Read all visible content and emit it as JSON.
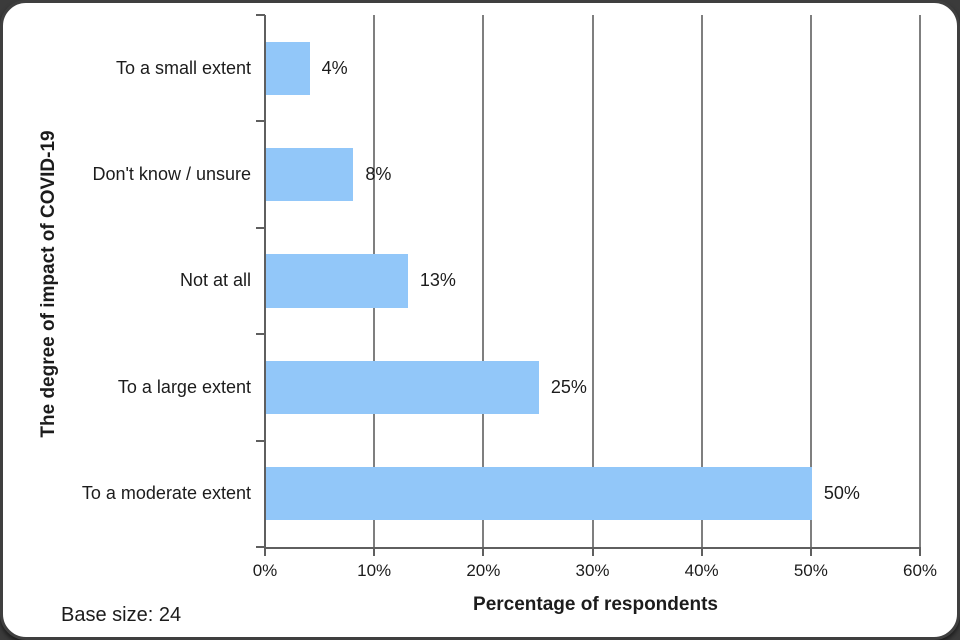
{
  "frame": {
    "card_background": "#ffffff",
    "card_border_color": "#3f3f3f",
    "outside_corner_color": "#3b3b3b"
  },
  "chart_data": {
    "type": "bar",
    "orientation": "horizontal",
    "title": "",
    "categories": [
      "To a small extent",
      "Don't know / unsure",
      "Not at all",
      "To a large extent",
      "To a moderate extent"
    ],
    "values": [
      4,
      8,
      13,
      25,
      50
    ],
    "data_labels": [
      "4%",
      "8%",
      "13%",
      "25%",
      "50%"
    ],
    "xlabel": "Percentage of respondents",
    "ylabel": "The degree of impact of COVID-19",
    "xlim": [
      0,
      60
    ],
    "x_tick_values": [
      0,
      10,
      20,
      30,
      40,
      50,
      60
    ],
    "x_tick_labels": [
      "0%",
      "10%",
      "20%",
      "30%",
      "40%",
      "50%",
      "60%"
    ],
    "grid": true,
    "legend": false,
    "bar_color": "#92c7f9",
    "gridline_color": "#7f7f7f",
    "axis_color": "#5f5f5f",
    "text_color": "#1c1c1c"
  },
  "footer": {
    "base_size_label": "Base size: 24"
  }
}
